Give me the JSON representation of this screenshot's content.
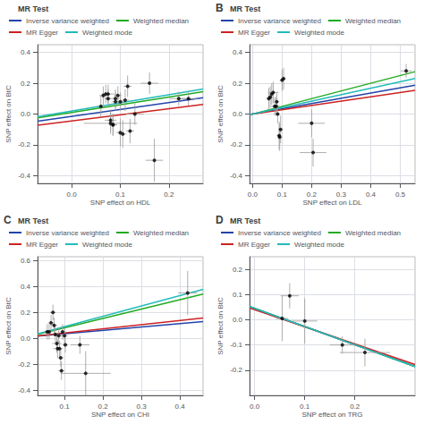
{
  "chart_data": [
    {
      "type": "scatter",
      "x_label": "SNP effect on HDL",
      "y_label": "SNP effect on BtC",
      "legend_title": "MR Test",
      "xlim": [
        -0.07,
        0.27
      ],
      "ylim": [
        -0.45,
        0.45
      ],
      "xticks": [
        {
          "value": 0.0,
          "label": "0.0"
        },
        0.1,
        0.2
      ],
      "yticks": [
        -0.4,
        -0.2,
        {
          "value": 0.0,
          "label": "0.0"
        },
        0.2,
        0.4
      ],
      "grid": true,
      "color": "black",
      "x": [
        0.06,
        0.065,
        0.07,
        0.075,
        0.075,
        0.08,
        0.08,
        0.085,
        0.085,
        0.09,
        0.09,
        0.095,
        0.1,
        0.1,
        0.105,
        0.11,
        0.115,
        0.12,
        0.13,
        0.16,
        0.17,
        0.22,
        0.24
      ],
      "values": [
        0.05,
        0.12,
        0.13,
        0.1,
        0.13,
        -0.04,
        -0.06,
        -0.07,
        -0.07,
        0.1,
        0.08,
        0.12,
        0.08,
        -0.12,
        -0.13,
        0.09,
        0.18,
        -0.11,
        0.0,
        0.2,
        -0.3,
        0.1,
        0.1
      ],
      "xerr": [
        0.008,
        0.008,
        0.008,
        0.008,
        0.012,
        0.012,
        0.055,
        0.008,
        0.008,
        0.008,
        0.008,
        0.008,
        0.008,
        0.008,
        0.008,
        0.008,
        0.008,
        0.008,
        0.018,
        0.018,
        0.018,
        0.018,
        0.018
      ],
      "yerr": [
        0.07,
        0.06,
        0.06,
        0.06,
        0.06,
        0.07,
        0.07,
        0.07,
        0.07,
        0.06,
        0.06,
        0.06,
        0.06,
        0.09,
        0.09,
        0.07,
        0.07,
        0.08,
        0.07,
        0.07,
        0.14,
        0.045,
        0.045
      ],
      "series": [
        {
          "name": "Inverse variance weighted",
          "type": "line",
          "color": "#2244aa",
          "slope": 0.45,
          "intercept": -0.015
        },
        {
          "name": "Weighted median",
          "type": "line",
          "color": "#22aa22",
          "slope": 0.5,
          "intercept": 0.01
        },
        {
          "name": "MR Egger",
          "type": "line",
          "color": "#cc2222",
          "slope": 0.4,
          "intercept": -0.045
        },
        {
          "name": "Weighted mode",
          "type": "line",
          "color": "#22bbbb",
          "slope": 0.53,
          "intercept": 0.02
        }
      ]
    },
    {
      "type": "scatter",
      "title": "B",
      "x_label": "SNP effect on LDL",
      "y_label": "SNP effect on BtC",
      "legend_title": "MR Test",
      "xlim": [
        -0.01,
        0.55
      ],
      "ylim": [
        -0.45,
        0.45
      ],
      "xticks": [
        {
          "value": 0.0,
          "label": "0.0"
        },
        0.1,
        0.2,
        0.3,
        0.4,
        0.5
      ],
      "yticks": [
        -0.4,
        -0.2,
        {
          "value": 0.0,
          "label": "0.0"
        },
        0.2,
        0.4
      ],
      "grid": true,
      "color": "black",
      "x": [
        0.055,
        0.06,
        0.065,
        0.07,
        0.075,
        0.08,
        0.082,
        0.085,
        0.09,
        0.092,
        0.095,
        0.1,
        0.105,
        0.2,
        0.205,
        0.52
      ],
      "values": [
        0.1,
        0.11,
        0.13,
        0.14,
        0.05,
        0.05,
        0.08,
        0.0,
        -0.14,
        -0.15,
        -0.1,
        0.22,
        0.23,
        -0.06,
        -0.25,
        0.28
      ],
      "xerr": [
        0.008,
        0.008,
        0.008,
        0.018,
        0.012,
        0.012,
        0.008,
        0.008,
        0.008,
        0.008,
        0.008,
        0.008,
        0.008,
        0.045,
        0.045,
        0.018
      ],
      "yerr": [
        0.07,
        0.07,
        0.07,
        0.07,
        0.06,
        0.06,
        0.06,
        0.06,
        0.09,
        0.09,
        0.09,
        0.07,
        0.07,
        0.09,
        0.09,
        0.045
      ],
      "series": [
        {
          "name": "Inverse variance weighted",
          "type": "line",
          "color": "#2244aa",
          "slope": 0.34,
          "intercept": 0.0
        },
        {
          "name": "Weighted median",
          "type": "line",
          "color": "#22aa22",
          "slope": 0.5,
          "intercept": 0.0
        },
        {
          "name": "MR Egger",
          "type": "line",
          "color": "#cc2222",
          "slope": 0.28,
          "intercept": 0.0
        },
        {
          "name": "Weighted mode",
          "type": "line",
          "color": "#22bbbb",
          "slope": 0.42,
          "intercept": 0.0
        }
      ]
    },
    {
      "type": "scatter",
      "title": "C",
      "x_label": "SNP effect on CHI",
      "y_label": "SNP effect on BtC",
      "legend_title": "MR Test",
      "xlim": [
        0.03,
        0.46
      ],
      "ylim": [
        -0.44,
        0.63
      ],
      "xticks": [
        0.1,
        0.2,
        0.3,
        0.4
      ],
      "yticks": [
        -0.4,
        -0.2,
        {
          "value": 0.0,
          "label": "0.0"
        },
        0.2,
        0.4,
        0.6
      ],
      "grid": true,
      "color": "black",
      "x": [
        0.055,
        0.06,
        0.065,
        0.07,
        0.073,
        0.076,
        0.08,
        0.082,
        0.085,
        0.087,
        0.09,
        0.092,
        0.095,
        0.1,
        0.102,
        0.14,
        0.155,
        0.42
      ],
      "values": [
        0.05,
        0.05,
        0.12,
        0.2,
        0.1,
        0.03,
        -0.04,
        -0.08,
        0.02,
        -0.08,
        -0.15,
        -0.25,
        0.05,
        0.02,
        -0.05,
        -0.05,
        -0.27,
        0.35
      ],
      "xerr": [
        0.008,
        0.008,
        0.008,
        0.008,
        0.008,
        0.008,
        0.012,
        0.012,
        0.008,
        0.008,
        0.008,
        0.008,
        0.008,
        0.008,
        0.008,
        0.025,
        0.065,
        0.025
      ],
      "yerr": [
        0.06,
        0.06,
        0.06,
        0.06,
        0.06,
        0.06,
        0.07,
        0.07,
        0.06,
        0.06,
        0.07,
        0.07,
        0.06,
        0.06,
        0.06,
        0.07,
        0.17,
        0.17
      ],
      "series": [
        {
          "name": "Inverse variance weighted",
          "type": "line",
          "color": "#2244aa",
          "slope": 0.26,
          "intercept": 0.01
        },
        {
          "name": "Weighted median",
          "type": "line",
          "color": "#22aa22",
          "slope": 0.72,
          "intercept": 0.01
        },
        {
          "name": "MR Egger",
          "type": "line",
          "color": "#cc2222",
          "slope": 0.32,
          "intercept": 0.01
        },
        {
          "name": "Weighted mode",
          "type": "line",
          "color": "#22bbbb",
          "slope": 0.8,
          "intercept": 0.01
        }
      ]
    },
    {
      "type": "scatter",
      "title": "D",
      "x_label": "SNP effect on TRG",
      "y_label": "SNP effect on BtC",
      "legend_title": "MR Test",
      "xlim": [
        -0.01,
        0.32
      ],
      "ylim": [
        -0.3,
        0.25
      ],
      "xticks": [
        {
          "value": 0.0,
          "label": "0.0"
        },
        0.1,
        0.2
      ],
      "yticks": [
        -0.2,
        -0.1,
        {
          "value": 0.0,
          "label": "0.0"
        },
        0.1,
        0.2
      ],
      "grid": true,
      "color": "black",
      "x": [
        0.055,
        0.07,
        0.1,
        0.175,
        0.22
      ],
      "values": [
        0.005,
        0.095,
        -0.005,
        -0.1,
        -0.13
      ],
      "xerr": [
        0.012,
        0.018,
        0.025,
        0.025,
        0.05
      ],
      "yerr": [
        0.09,
        0.05,
        0.09,
        0.035,
        0.055
      ],
      "series": [
        {
          "name": "Inverse variance weighted",
          "type": "line",
          "color": "#2244aa",
          "slope": -0.72,
          "intercept": 0.045
        },
        {
          "name": "Weighted median",
          "type": "line",
          "color": "#22aa22",
          "slope": -0.72,
          "intercept": 0.045
        },
        {
          "name": "MR Egger",
          "type": "line",
          "color": "#cc2222",
          "slope": -0.68,
          "intercept": 0.04
        },
        {
          "name": "Weighted mode",
          "type": "line",
          "color": "#22bbbb",
          "slope": -0.72,
          "intercept": 0.045
        }
      ]
    }
  ]
}
